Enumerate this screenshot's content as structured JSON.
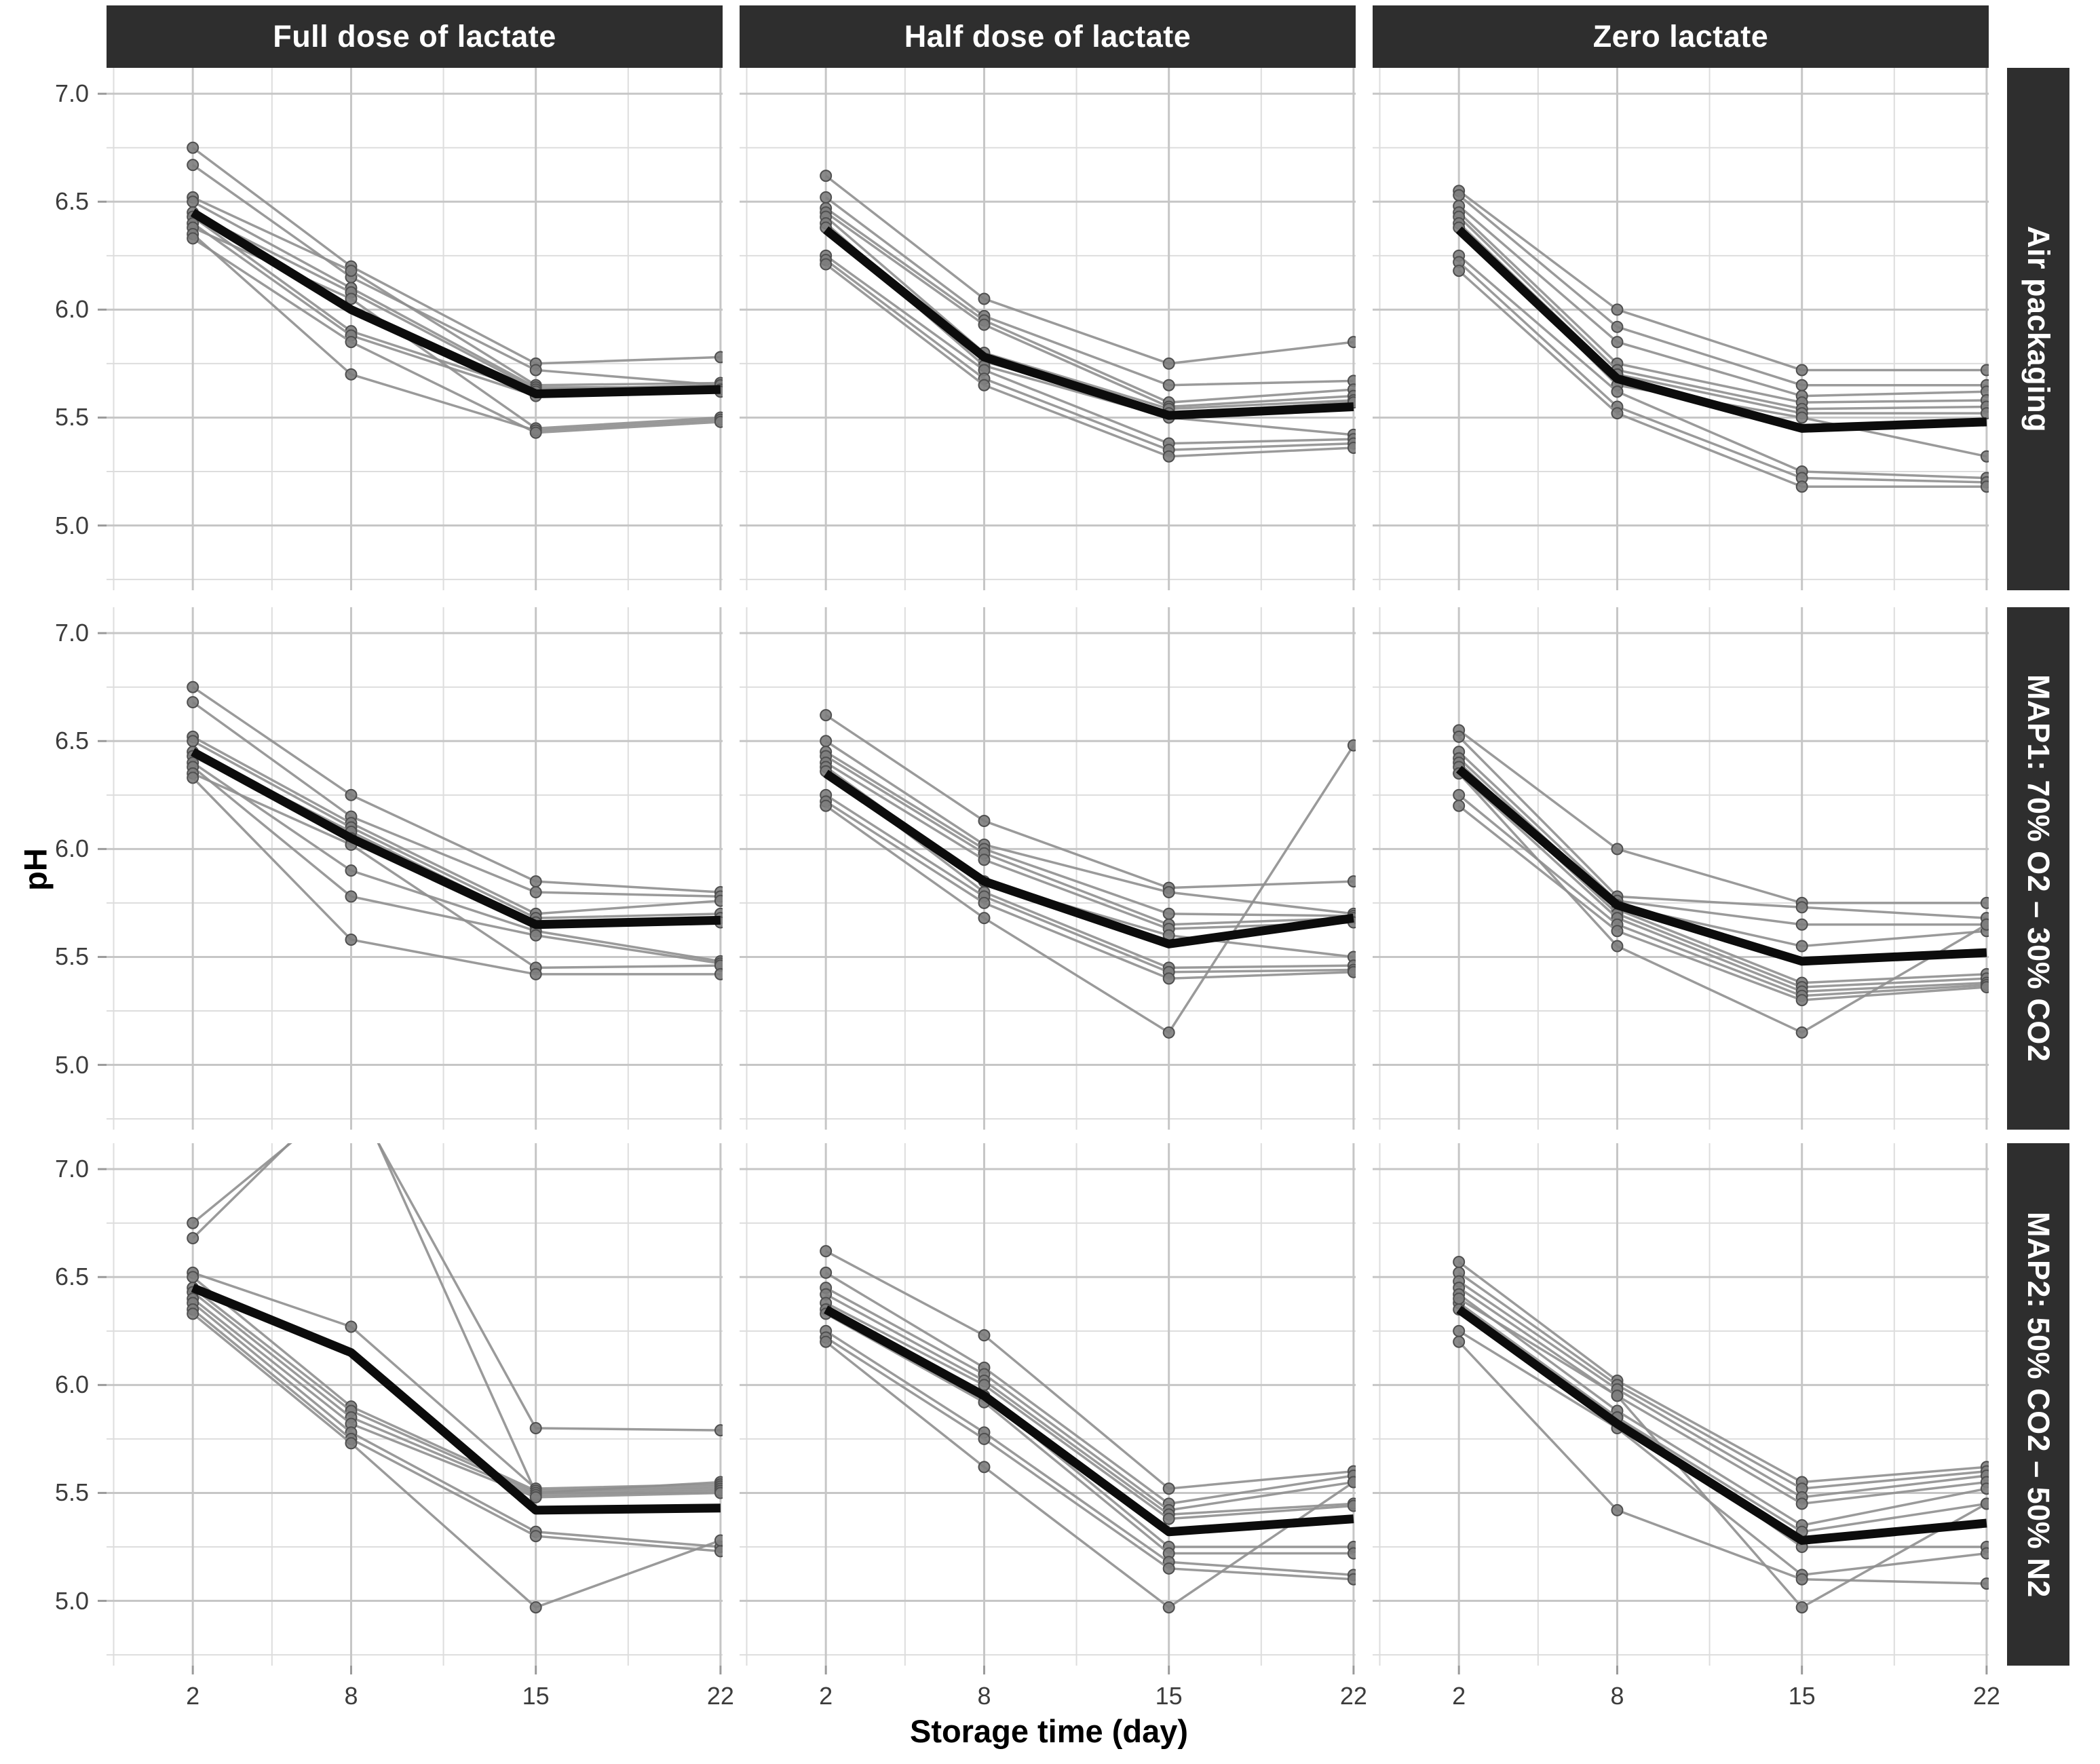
{
  "chart_data": {
    "type": "line",
    "description": "Faceted spaghetti plot of meat pH during storage; thin grey lines are individual samples, thick black line is the mean per panel.",
    "xlabel": "Storage time (day)",
    "ylabel": "pH",
    "x": [
      2,
      8,
      15,
      22
    ],
    "x_ticks": [
      "2",
      "8",
      "15",
      "22"
    ],
    "y_ticks": [
      "7.0",
      "6.5",
      "6.0",
      "5.5",
      "5.0"
    ],
    "y_tick_values": [
      7.0,
      6.5,
      6.0,
      5.5,
      5.0
    ],
    "y_minor_values": [
      6.75,
      6.25,
      5.75,
      5.25,
      4.75
    ],
    "x_minor_values": [
      -1,
      5,
      11.5,
      18.5
    ],
    "xlim": [
      -1.27,
      22.08
    ],
    "ylim": [
      4.7,
      7.12
    ],
    "grid": "on",
    "legend": "none",
    "col_facets": [
      "Full dose of lactate",
      "Half dose of lactate",
      "Zero lactate"
    ],
    "row_facets": [
      "Air packaging",
      "MAP1: 70% O2 – 30% CO2",
      "MAP2: 50% CO2 – 50% N2"
    ],
    "panels": [
      {
        "row": 0,
        "col": 0,
        "row_label": "Air packaging",
        "col_label": "Full dose of lactate",
        "mean": [
          6.45,
          6.0,
          5.61,
          5.63
        ],
        "series": [
          [
            6.75,
            6.2,
            5.75,
            5.78
          ],
          [
            6.67,
            6.15,
            5.72,
            5.65
          ],
          [
            6.52,
            6.18,
            5.65,
            5.66
          ],
          [
            6.5,
            6.1,
            5.64,
            5.64
          ],
          [
            6.45,
            6.08,
            5.63,
            5.65
          ],
          [
            6.43,
            5.9,
            5.62,
            5.63
          ],
          [
            6.4,
            5.88,
            5.6,
            5.62
          ],
          [
            6.38,
            6.05,
            5.45,
            5.5
          ],
          [
            6.35,
            5.7,
            5.44,
            5.49
          ],
          [
            6.33,
            5.85,
            5.43,
            5.48
          ]
        ]
      },
      {
        "row": 0,
        "col": 1,
        "row_label": "Air packaging",
        "col_label": "Half dose of lactate",
        "mean": [
          6.37,
          5.78,
          5.51,
          5.55
        ],
        "series": [
          [
            6.62,
            6.05,
            5.75,
            5.85
          ],
          [
            6.52,
            5.97,
            5.65,
            5.67
          ],
          [
            6.47,
            5.95,
            5.57,
            5.63
          ],
          [
            6.45,
            5.93,
            5.55,
            5.6
          ],
          [
            6.43,
            5.8,
            5.54,
            5.58
          ],
          [
            6.4,
            5.76,
            5.52,
            5.57
          ],
          [
            6.38,
            5.74,
            5.5,
            5.42
          ],
          [
            6.25,
            5.72,
            5.38,
            5.4
          ],
          [
            6.23,
            5.68,
            5.35,
            5.38
          ],
          [
            6.21,
            5.65,
            5.32,
            5.36
          ]
        ]
      },
      {
        "row": 0,
        "col": 2,
        "row_label": "Air packaging",
        "col_label": "Zero lactate",
        "mean": [
          6.37,
          5.68,
          5.45,
          5.48
        ],
        "series": [
          [
            6.55,
            6.0,
            5.72,
            5.72
          ],
          [
            6.53,
            5.92,
            5.65,
            5.65
          ],
          [
            6.48,
            5.85,
            5.6,
            5.62
          ],
          [
            6.45,
            5.75,
            5.57,
            5.58
          ],
          [
            6.43,
            5.72,
            5.54,
            5.55
          ],
          [
            6.4,
            5.7,
            5.52,
            5.52
          ],
          [
            6.38,
            5.65,
            5.5,
            5.32
          ],
          [
            6.25,
            5.62,
            5.25,
            5.22
          ],
          [
            6.22,
            5.55,
            5.22,
            5.2
          ],
          [
            6.18,
            5.52,
            5.18,
            5.18
          ]
        ]
      },
      {
        "row": 1,
        "col": 0,
        "row_label": "MAP1: 70% O2 – 30% CO2",
        "col_label": "Full dose of lactate",
        "mean": [
          6.45,
          6.05,
          5.65,
          5.67
        ],
        "series": [
          [
            6.75,
            6.25,
            5.85,
            5.8
          ],
          [
            6.68,
            6.15,
            5.8,
            5.78
          ],
          [
            6.52,
            6.12,
            5.7,
            5.76
          ],
          [
            6.5,
            6.1,
            5.68,
            5.7
          ],
          [
            6.45,
            6.08,
            5.66,
            5.68
          ],
          [
            6.43,
            6.05,
            5.64,
            5.66
          ],
          [
            6.4,
            5.9,
            5.62,
            5.48
          ],
          [
            6.38,
            5.78,
            5.6,
            5.47
          ],
          [
            6.35,
            6.02,
            5.45,
            5.46
          ],
          [
            6.33,
            5.58,
            5.42,
            5.42
          ]
        ]
      },
      {
        "row": 1,
        "col": 1,
        "row_label": "MAP1: 70% O2 – 30% CO2",
        "col_label": "Half dose of lactate",
        "mean": [
          6.35,
          5.85,
          5.56,
          5.68
        ],
        "series": [
          [
            6.62,
            6.13,
            5.82,
            5.85
          ],
          [
            6.5,
            6.02,
            5.8,
            5.7
          ],
          [
            6.45,
            6.0,
            5.7,
            5.69
          ],
          [
            6.43,
            5.98,
            5.65,
            5.68
          ],
          [
            6.4,
            5.95,
            5.63,
            5.66
          ],
          [
            6.38,
            5.85,
            5.6,
            5.5
          ],
          [
            6.36,
            5.8,
            5.45,
            5.46
          ],
          [
            6.25,
            5.78,
            5.43,
            5.44
          ],
          [
            6.22,
            5.75,
            5.4,
            5.43
          ],
          [
            6.2,
            5.68,
            5.15,
            6.48
          ]
        ]
      },
      {
        "row": 1,
        "col": 2,
        "row_label": "MAP1: 70% O2 – 30% CO2",
        "col_label": "Zero lactate",
        "mean": [
          6.37,
          5.74,
          5.48,
          5.52
        ],
        "series": [
          [
            6.55,
            6.0,
            5.75,
            5.75
          ],
          [
            6.52,
            5.78,
            5.73,
            5.68
          ],
          [
            6.45,
            5.76,
            5.65,
            5.65
          ],
          [
            6.42,
            5.74,
            5.55,
            5.62
          ],
          [
            6.4,
            5.72,
            5.38,
            5.42
          ],
          [
            6.38,
            5.7,
            5.36,
            5.4
          ],
          [
            6.35,
            5.68,
            5.34,
            5.38
          ],
          [
            6.25,
            5.65,
            5.32,
            5.37
          ],
          [
            6.2,
            5.62,
            5.3,
            5.36
          ],
          [
            6.35,
            5.55,
            5.15,
            5.65
          ]
        ]
      },
      {
        "row": 2,
        "col": 0,
        "row_label": "MAP2: 50% CO2 – 50% N2",
        "col_label": "Full dose of lactate",
        "mean": [
          6.45,
          6.15,
          5.42,
          5.43
        ],
        "series": [
          [
            6.75,
            7.35,
            5.8,
            5.79
          ],
          [
            6.68,
            7.4,
            5.5,
            5.55
          ],
          [
            6.52,
            6.27,
            5.52,
            5.54
          ],
          [
            6.5,
            5.9,
            5.51,
            5.53
          ],
          [
            6.45,
            5.88,
            5.5,
            5.52
          ],
          [
            6.43,
            5.85,
            5.49,
            5.51
          ],
          [
            6.4,
            5.82,
            5.48,
            5.5
          ],
          [
            6.38,
            5.78,
            5.32,
            5.25
          ],
          [
            6.35,
            5.75,
            5.3,
            5.23
          ],
          [
            6.33,
            5.73,
            4.97,
            5.28
          ]
        ]
      },
      {
        "row": 2,
        "col": 1,
        "row_label": "MAP2: 50% CO2 – 50% N2",
        "col_label": "Half dose of lactate",
        "mean": [
          6.35,
          5.95,
          5.32,
          5.38
        ],
        "series": [
          [
            6.62,
            6.23,
            5.52,
            5.6
          ],
          [
            6.52,
            6.08,
            5.45,
            5.58
          ],
          [
            6.45,
            6.05,
            5.42,
            5.55
          ],
          [
            6.42,
            6.02,
            5.4,
            5.45
          ],
          [
            6.38,
            6.0,
            5.38,
            5.44
          ],
          [
            6.35,
            5.95,
            5.25,
            5.25
          ],
          [
            6.33,
            5.92,
            5.22,
            5.22
          ],
          [
            6.25,
            5.78,
            5.18,
            5.12
          ],
          [
            6.22,
            5.75,
            5.15,
            5.1
          ],
          [
            6.2,
            5.62,
            4.97,
            5.55
          ]
        ]
      },
      {
        "row": 2,
        "col": 2,
        "row_label": "MAP2: 50% CO2 – 50% N2",
        "col_label": "Zero lactate",
        "mean": [
          6.35,
          5.82,
          5.28,
          5.36
        ],
        "series": [
          [
            6.57,
            6.02,
            5.55,
            5.62
          ],
          [
            6.52,
            6.0,
            5.52,
            5.6
          ],
          [
            6.48,
            5.98,
            5.48,
            5.58
          ],
          [
            6.45,
            5.95,
            5.45,
            5.55
          ],
          [
            6.42,
            5.88,
            5.35,
            5.52
          ],
          [
            6.38,
            5.85,
            5.32,
            5.45
          ],
          [
            6.35,
            5.85,
            5.25,
            5.25
          ],
          [
            6.25,
            5.8,
            5.12,
            5.22
          ],
          [
            6.2,
            5.42,
            5.1,
            5.08
          ],
          [
            6.4,
            5.95,
            4.97,
            5.45
          ]
        ]
      }
    ]
  },
  "colors": {
    "strip_background": "#2e2e2e",
    "strip_text": "#ffffff",
    "panel_background": "#ffffff",
    "grid_major": "#c6c6c6",
    "grid_minor": "#dddddd",
    "series_line": "#8f8f8f",
    "point_fill": "#7d7d7d",
    "point_stroke": "#4f4f4f",
    "mean_line": "#0c0c0c",
    "tick_mark": "#9a9a9a",
    "tick_text": "#3c3c3c",
    "axis_title_text": "#000000"
  }
}
